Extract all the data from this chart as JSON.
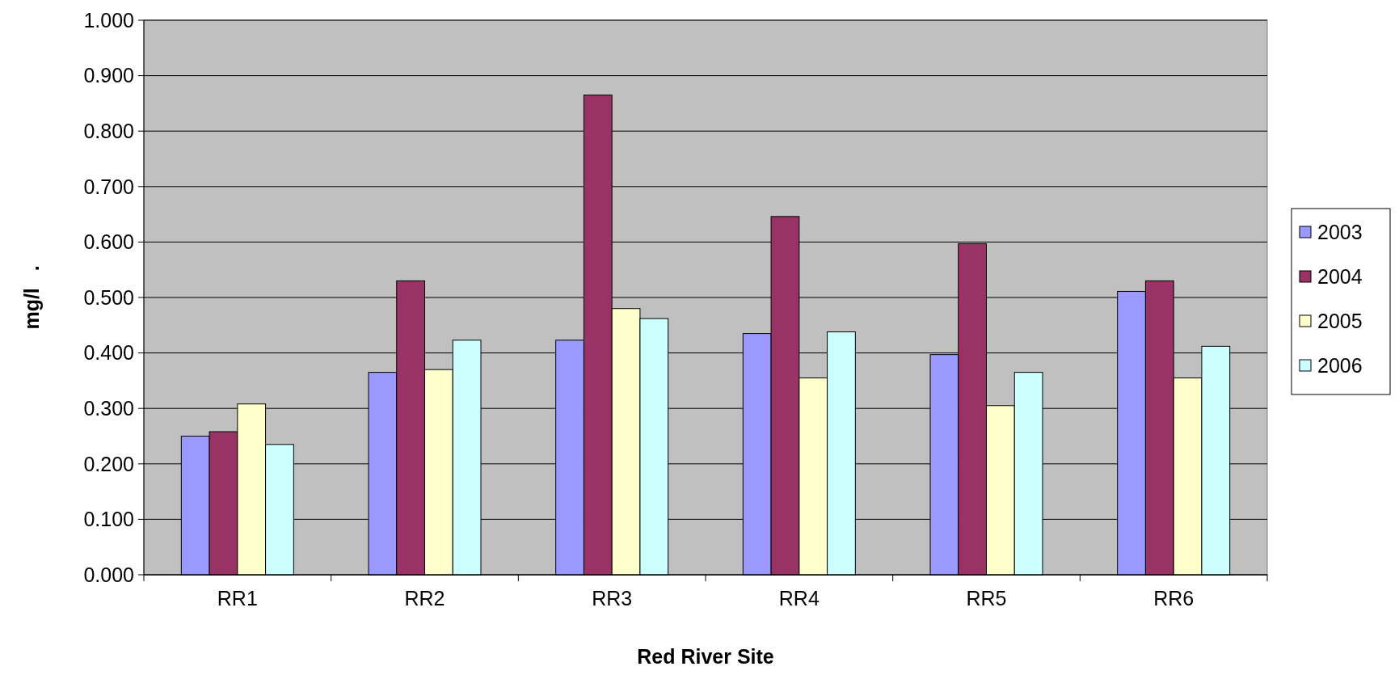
{
  "chart_data": {
    "type": "bar",
    "xlabel": "Red River Site",
    "ylabel": "mg/l   .",
    "categories": [
      "RR1",
      "RR2",
      "RR3",
      "RR4",
      "RR5",
      "RR6"
    ],
    "series": [
      {
        "name": "2003",
        "color": "#9999ff",
        "values": [
          0.25,
          0.365,
          0.423,
          0.435,
          0.397,
          0.511
        ]
      },
      {
        "name": "2004",
        "color": "#993366",
        "values": [
          0.258,
          0.53,
          0.865,
          0.646,
          0.597,
          0.53
        ]
      },
      {
        "name": "2005",
        "color": "#ffffcc",
        "values": [
          0.308,
          0.37,
          0.48,
          0.355,
          0.305,
          0.355
        ]
      },
      {
        "name": "2006",
        "color": "#ccffff",
        "values": [
          0.235,
          0.423,
          0.462,
          0.438,
          0.365,
          0.412
        ]
      }
    ],
    "ylim": [
      0,
      1
    ],
    "yticks": [
      {
        "value": 0,
        "label": "0.000"
      },
      {
        "value": 0.1,
        "label": "0.100"
      },
      {
        "value": 0.2,
        "label": "0.200"
      },
      {
        "value": 0.3,
        "label": "0.300"
      },
      {
        "value": 0.4,
        "label": "0.400"
      },
      {
        "value": 0.5,
        "label": "0.500"
      },
      {
        "value": 0.6,
        "label": "0.600"
      },
      {
        "value": 0.7,
        "label": "0.700"
      },
      {
        "value": 0.8,
        "label": "0.800"
      },
      {
        "value": 0.9,
        "label": "0.900"
      },
      {
        "value": 1,
        "label": "1.000"
      }
    ],
    "grid": "y",
    "legend": "right"
  }
}
